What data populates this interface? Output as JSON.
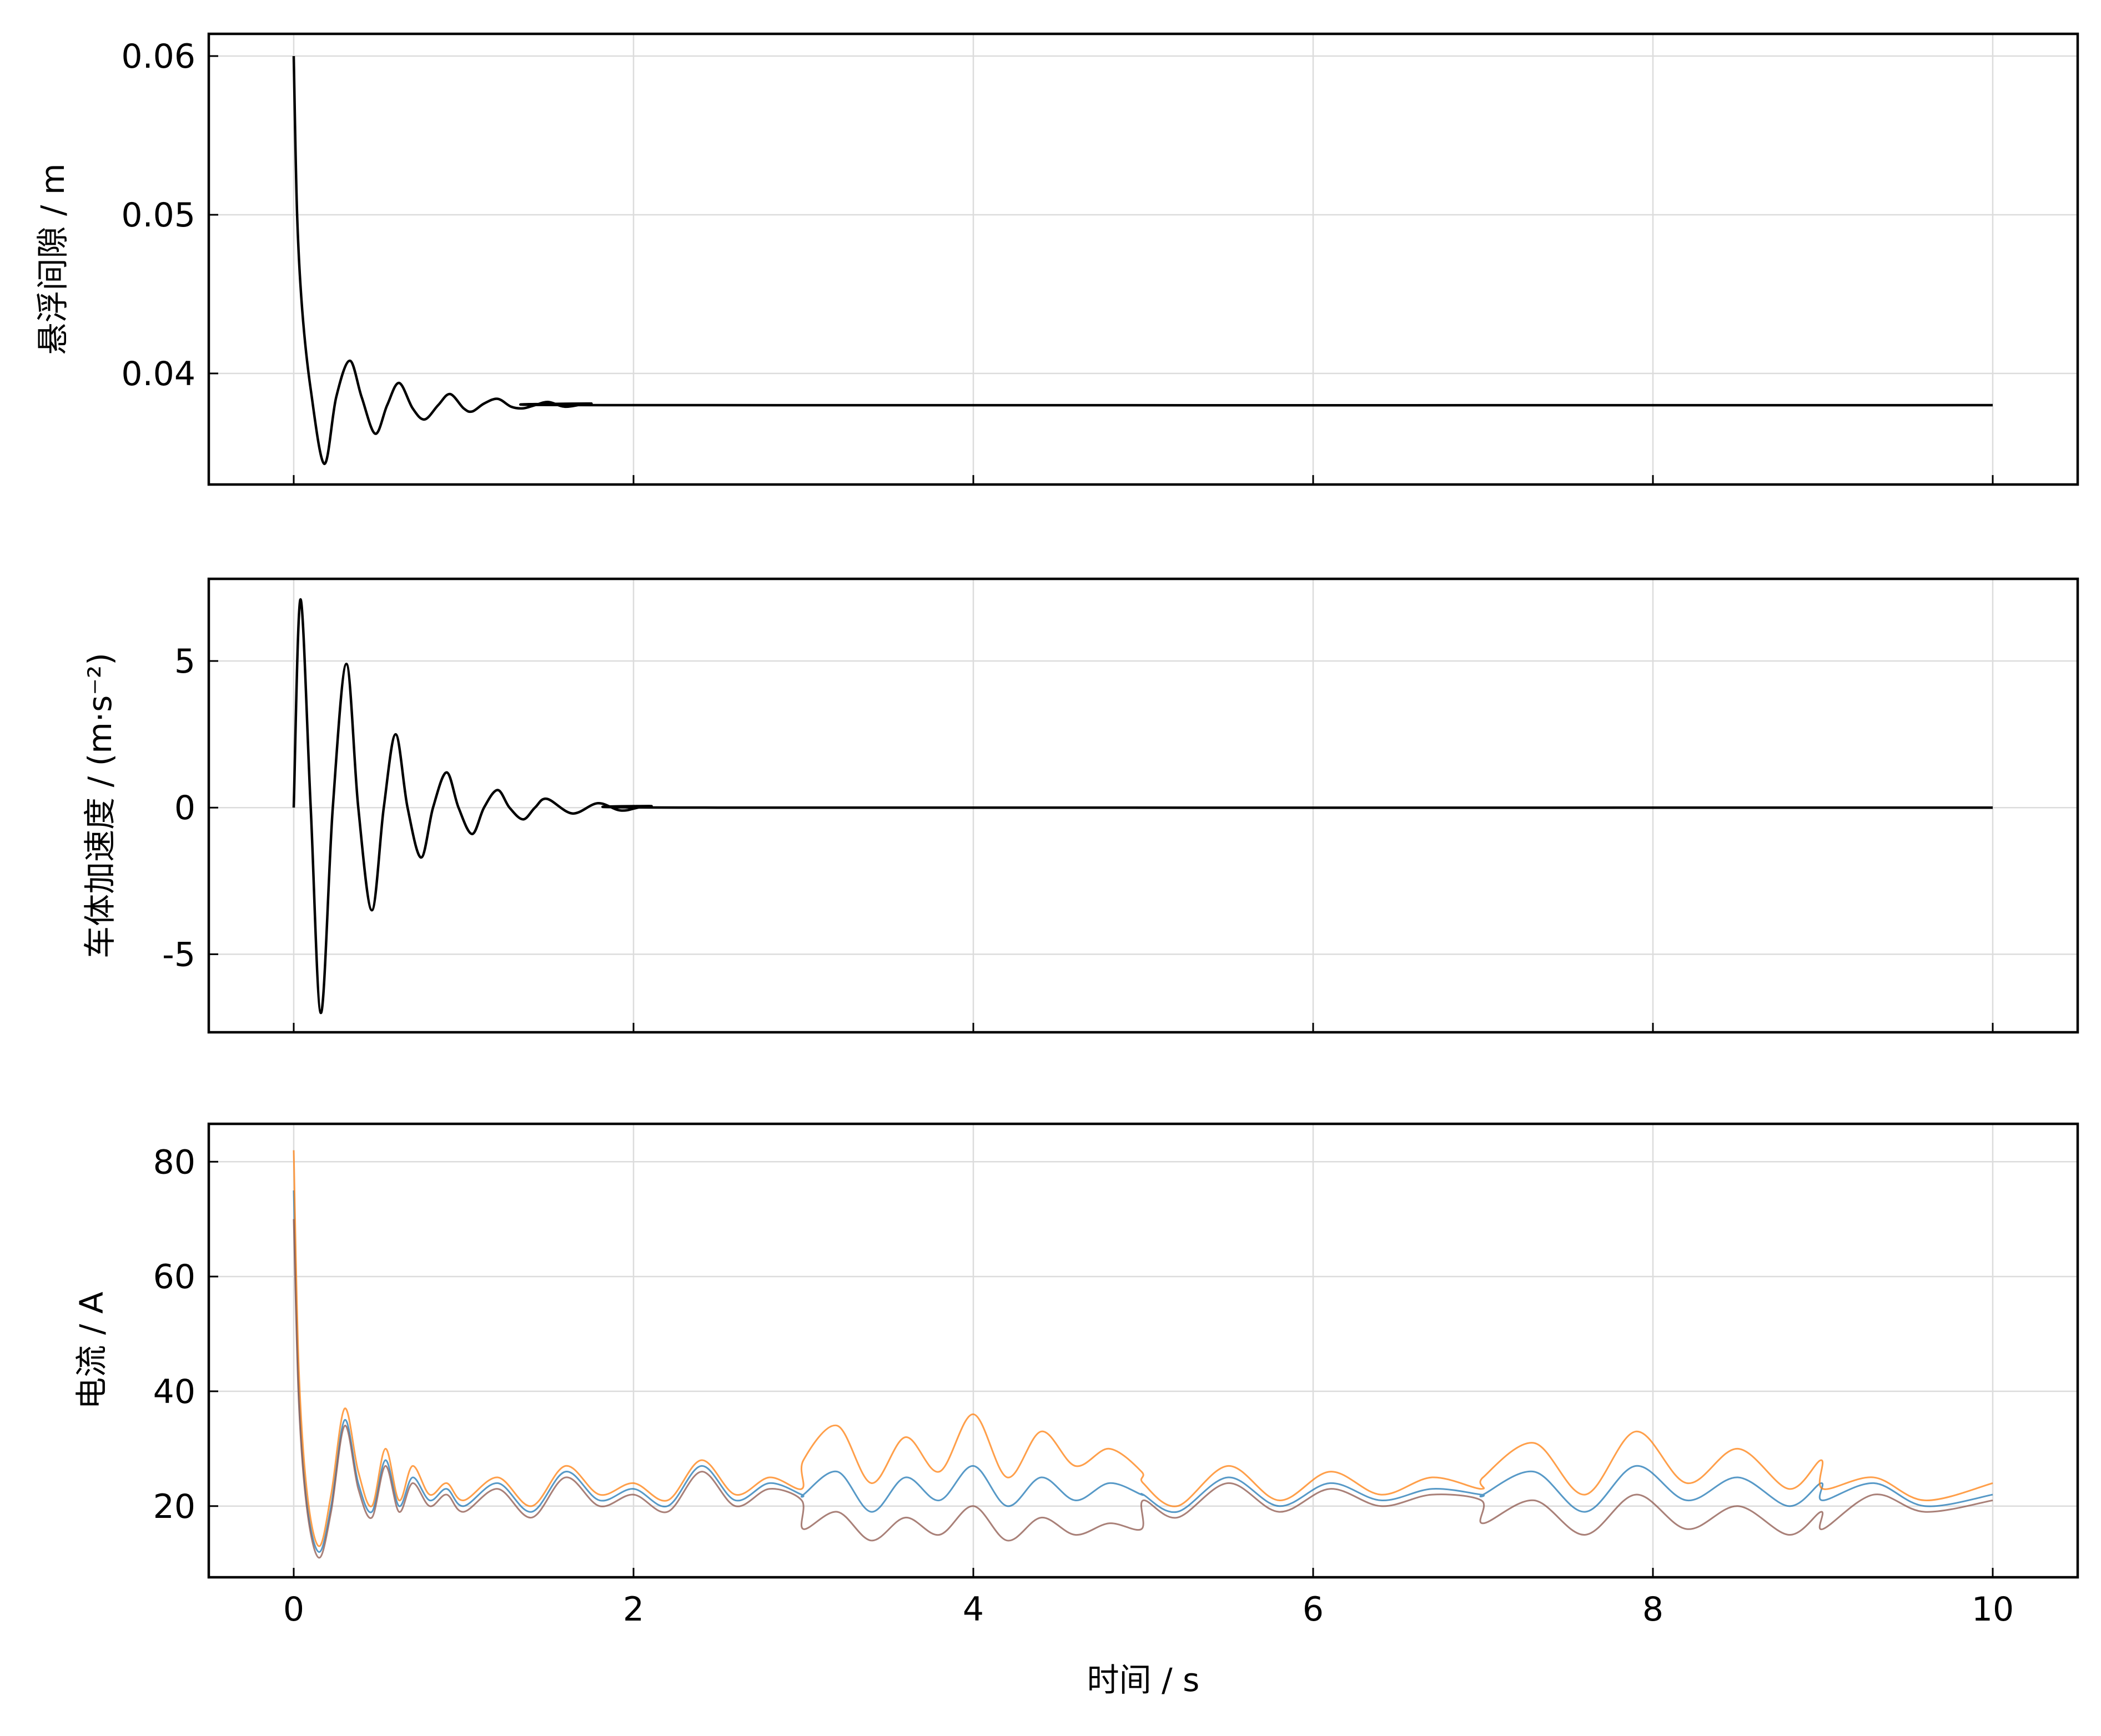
{
  "chart_data": [
    {
      "type": "line",
      "ylabel": "悬浮间隙 / m",
      "grid": true,
      "xlim": [
        -0.5,
        10.5
      ],
      "xticks": [
        0,
        2,
        4,
        6,
        8,
        10
      ],
      "ylim": [
        0.033,
        0.0614
      ],
      "yticks": [
        0.04,
        0.05,
        0.06
      ],
      "x": [
        0,
        0.02,
        0.05,
        0.1,
        0.18,
        0.25,
        0.33,
        0.4,
        0.48,
        0.55,
        0.62,
        0.7,
        0.77,
        0.85,
        0.92,
        1.0,
        1.05,
        1.12,
        1.2,
        1.28,
        1.35,
        1.42,
        1.5,
        1.6,
        1.75,
        2.0,
        10
      ],
      "series": [
        {
          "color": "#000000",
          "values": [
            0.06,
            0.05,
            0.044,
            0.039,
            0.0343,
            0.0385,
            0.0408,
            0.0385,
            0.0362,
            0.038,
            0.0394,
            0.0378,
            0.0371,
            0.038,
            0.0387,
            0.0378,
            0.0376,
            0.0381,
            0.0384,
            0.0379,
            0.0378,
            0.038,
            0.0382,
            0.0379,
            0.0381,
            0.038,
            0.038
          ]
        }
      ]
    },
    {
      "type": "line",
      "ylabel": "车体加速度 / (m·s⁻²)",
      "grid": true,
      "xlim": [
        -0.5,
        10.5
      ],
      "xticks": [
        0,
        2,
        4,
        6,
        8,
        10
      ],
      "ylim": [
        -7.66,
        7.8
      ],
      "yticks": [
        -5,
        0,
        5
      ],
      "x": [
        0,
        0.04,
        0.1,
        0.16,
        0.23,
        0.31,
        0.38,
        0.46,
        0.53,
        0.6,
        0.67,
        0.75,
        0.82,
        0.9,
        0.97,
        1.05,
        1.12,
        1.2,
        1.27,
        1.35,
        1.42,
        1.49,
        1.64,
        1.79,
        1.93,
        2.1,
        2.5,
        10
      ],
      "series": [
        {
          "color": "#000000",
          "values": [
            0,
            7.1,
            0,
            -7.0,
            0,
            4.9,
            0,
            -3.5,
            0,
            2.5,
            0,
            -1.7,
            0,
            1.2,
            0,
            -0.9,
            0,
            0.6,
            0,
            -0.4,
            0,
            0.3,
            -0.2,
            0.15,
            -0.1,
            0.05,
            0,
            0
          ]
        }
      ]
    },
    {
      "type": "line",
      "ylabel": "电流 / A",
      "xlabel": "时间 / s",
      "grid": true,
      "xlim": [
        -0.5,
        10.5
      ],
      "xticks": [
        0,
        2,
        4,
        6,
        8,
        10
      ],
      "ylim": [
        7.6,
        86.6
      ],
      "yticks": [
        20,
        40,
        60,
        80
      ],
      "x": [
        0,
        0.03,
        0.08,
        0.15,
        0.22,
        0.3,
        0.38,
        0.46,
        0.54,
        0.62,
        0.7,
        0.8,
        0.9,
        1.0,
        1.2,
        1.4,
        1.6,
        1.8,
        2.0,
        2.2,
        2.4,
        2.6,
        2.8,
        2.99,
        3.0,
        3.2,
        3.4,
        3.6,
        3.8,
        4.0,
        4.2,
        4.4,
        4.6,
        4.8,
        4.99,
        5.0,
        5.2,
        5.5,
        5.8,
        6.1,
        6.4,
        6.7,
        6.99,
        7.0,
        7.3,
        7.6,
        7.9,
        8.2,
        8.5,
        8.8,
        8.99,
        9.0,
        9.3,
        9.6,
        10.0
      ],
      "series": [
        {
          "color": "#1f77b4",
          "values": [
            75,
            40,
            20,
            12,
            20,
            35,
            24,
            19,
            28,
            20,
            25,
            21,
            23,
            20,
            24,
            19,
            26,
            21,
            23,
            20,
            27,
            21,
            24,
            22,
            22,
            26,
            19,
            25,
            21,
            27,
            20,
            25,
            21,
            24,
            22,
            22,
            19,
            25,
            20,
            24,
            21,
            23,
            22,
            22,
            26,
            19,
            27,
            21,
            25,
            20,
            24,
            21,
            24,
            20,
            22
          ]
        },
        {
          "color": "#ff7f0e",
          "values": [
            82,
            44,
            22,
            13,
            22,
            37,
            26,
            20,
            30,
            21,
            27,
            22,
            24,
            21,
            25,
            20,
            27,
            22,
            24,
            21,
            28,
            22,
            25,
            23,
            28,
            34,
            24,
            32,
            26,
            36,
            25,
            33,
            27,
            30,
            26,
            24,
            20,
            27,
            21,
            26,
            22,
            25,
            23,
            25,
            31,
            22,
            33,
            24,
            30,
            23,
            28,
            23,
            25,
            21,
            24
          ]
        },
        {
          "color": "#8c564b",
          "values": [
            70,
            38,
            19,
            11,
            19,
            34,
            23,
            18,
            27,
            19,
            24,
            20,
            22,
            19,
            23,
            18,
            25,
            20,
            22,
            19,
            26,
            20,
            23,
            21,
            16,
            19,
            14,
            18,
            15,
            20,
            14,
            18,
            15,
            17,
            16,
            21,
            18,
            24,
            19,
            23,
            20,
            22,
            21,
            17,
            21,
            15,
            22,
            16,
            20,
            15,
            19,
            16,
            22,
            19,
            21
          ]
        }
      ]
    }
  ]
}
